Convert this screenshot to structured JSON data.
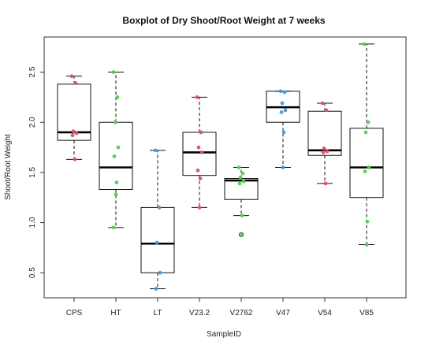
{
  "chart_data": {
    "type": "boxplot",
    "title": "Boxplot of Dry Shoot/Root Weight at 7 weeks",
    "xlabel": "SampleID",
    "ylabel": "Shoot/Root Weight",
    "ylim": [
      0.25,
      2.85
    ],
    "yticks": [
      "0.5",
      "1.0",
      "1.5",
      "2.0",
      "2.5"
    ],
    "ytick_values": [
      0.5,
      1.0,
      1.5,
      2.0,
      2.5
    ],
    "categories": [
      "CPS",
      "HT",
      "LT",
      "V23.2",
      "V2762",
      "V47",
      "V54",
      "V85"
    ],
    "boxes": [
      {
        "name": "CPS",
        "min": 1.63,
        "q1": 1.82,
        "median": 1.9,
        "q3": 2.38,
        "max": 2.46
      },
      {
        "name": "HT",
        "min": 0.95,
        "q1": 1.33,
        "median": 1.55,
        "q3": 2.0,
        "max": 2.5
      },
      {
        "name": "LT",
        "min": 0.34,
        "q1": 0.5,
        "median": 0.79,
        "q3": 1.15,
        "max": 1.72
      },
      {
        "name": "V23.2",
        "min": 1.15,
        "q1": 1.47,
        "median": 1.7,
        "q3": 1.9,
        "max": 2.25
      },
      {
        "name": "V2762",
        "min": 1.07,
        "q1": 1.23,
        "median": 1.42,
        "q3": 1.44,
        "max": 1.55
      },
      {
        "name": "V47",
        "min": 1.55,
        "q1": 2.0,
        "median": 2.15,
        "q3": 2.31,
        "max": 2.31
      },
      {
        "name": "V54",
        "min": 1.39,
        "q1": 1.67,
        "median": 1.72,
        "q3": 2.11,
        "max": 2.19
      },
      {
        "name": "V85",
        "min": 0.78,
        "q1": 1.25,
        "median": 1.55,
        "q3": 1.94,
        "max": 2.78
      }
    ],
    "outliers": [
      {
        "category": "V2762",
        "value": 0.88
      }
    ],
    "points": [
      {
        "category": "CPS",
        "values": [
          2.46,
          2.39,
          1.91,
          1.89,
          1.87,
          1.63
        ],
        "color": "#d9546e"
      },
      {
        "category": "HT",
        "values": [
          2.5,
          2.25,
          2.0,
          1.75,
          1.66,
          1.4,
          1.28,
          0.95
        ],
        "color": "#5cc85a"
      },
      {
        "category": "LT",
        "values": [
          1.72,
          1.15,
          0.8,
          0.5,
          0.34
        ],
        "color": "#3f9ae0"
      },
      {
        "category": "V23.2",
        "values": [
          2.25,
          1.9,
          1.75,
          1.7,
          1.52,
          1.44,
          1.15
        ],
        "color": "#d9546e"
      },
      {
        "category": "V2762",
        "values": [
          1.55,
          1.49,
          1.45,
          1.41,
          1.39,
          1.07,
          0.88
        ],
        "color": "#5cc85a"
      },
      {
        "category": "V47",
        "values": [
          2.31,
          2.3,
          2.19,
          2.12,
          2.1,
          1.9,
          1.55
        ],
        "color": "#3f9ae0"
      },
      {
        "category": "V54",
        "values": [
          2.19,
          2.12,
          1.74,
          1.71,
          1.7,
          1.39
        ],
        "color": "#d9546e"
      },
      {
        "category": "V85",
        "values": [
          2.78,
          2.0,
          1.9,
          1.55,
          1.51,
          1.01,
          0.78
        ],
        "color": "#5cc85a"
      }
    ],
    "grid": false,
    "legend": "none"
  }
}
